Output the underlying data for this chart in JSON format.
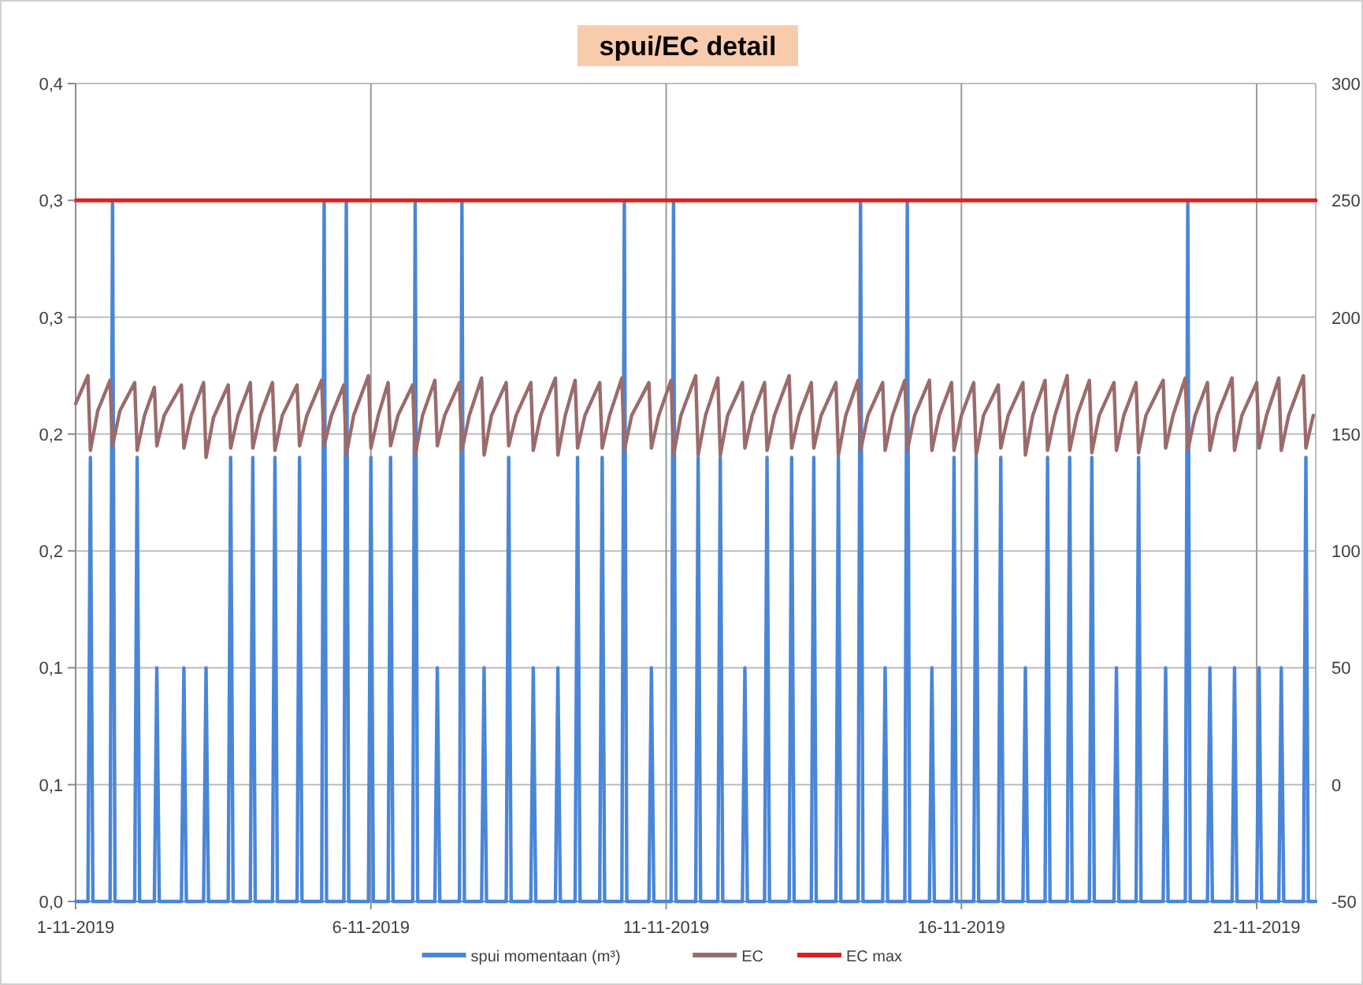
{
  "chart_data": {
    "type": "line",
    "title": "spui/EC detail",
    "xlim": [
      "2019-11-01T00:00",
      "2019-11-22T00:00"
    ],
    "xticks": [
      {
        "value": "2019-11-01",
        "label": "1-11-2019"
      },
      {
        "value": "2019-11-06",
        "label": "6-11-2019"
      },
      {
        "value": "2019-11-11",
        "label": "11-11-2019"
      },
      {
        "value": "2019-11-16",
        "label": "16-11-2019"
      },
      {
        "value": "2019-11-21",
        "label": "21-11-2019"
      }
    ],
    "ylim": [
      0,
      0.35
    ],
    "yticks": [
      {
        "value": 0,
        "label": "0,0"
      },
      {
        "value": 0.05,
        "label": "0,1"
      },
      {
        "value": 0.1,
        "label": "0,1"
      },
      {
        "value": 0.15,
        "label": "0,2"
      },
      {
        "value": 0.2,
        "label": "0,2"
      },
      {
        "value": 0.25,
        "label": "0,3"
      },
      {
        "value": 0.3,
        "label": "0,3"
      },
      {
        "value": 0.35,
        "label": "0,4"
      }
    ],
    "y2lim": [
      -50,
      300
    ],
    "y2ticks": [
      -50,
      0,
      50,
      100,
      150,
      200,
      250,
      300
    ],
    "grid": true,
    "legend": "bottom",
    "series": [
      {
        "name": "spui momentaan (m³)",
        "color": "#4a86d8",
        "x": [
          "2019-11-01T00:00",
          "2019-11-01T05:00",
          "2019-11-01T06:00",
          "2019-11-01T07:00",
          "2019-11-01T14:00",
          "2019-11-01T15:00",
          "2019-11-01T16:00",
          "2019-11-02T00:00",
          "2019-11-02T01:00",
          "2019-11-02T02:00",
          "2019-11-02T08:00",
          "2019-11-02T09:00",
          "2019-11-02T10:00",
          "2019-11-02T19:00",
          "2019-11-02T20:00",
          "2019-11-02T21:00",
          "2019-11-03T04:00",
          "2019-11-03T05:00",
          "2019-11-03T06:00",
          "2019-11-03T14:00",
          "2019-11-03T15:00",
          "2019-11-03T16:00",
          "2019-11-03T23:00",
          "2019-11-04T00:00",
          "2019-11-04T01:00",
          "2019-11-04T08:00",
          "2019-11-04T09:00",
          "2019-11-04T10:00",
          "2019-11-04T18:00",
          "2019-11-04T19:00",
          "2019-11-04T20:00",
          "2019-11-05T04:00",
          "2019-11-05T05:00",
          "2019-11-05T06:00",
          "2019-11-05T13:00",
          "2019-11-05T14:00",
          "2019-11-05T15:00",
          "2019-11-05T23:00",
          "2019-11-06T00:00",
          "2019-11-06T01:00",
          "2019-11-06T07:00",
          "2019-11-06T08:00",
          "2019-11-06T09:00",
          "2019-11-06T17:00",
          "2019-11-06T18:00",
          "2019-11-06T19:00",
          "2019-11-07T02:00",
          "2019-11-07T03:00",
          "2019-11-07T04:00",
          "2019-11-07T12:00",
          "2019-11-07T13:00",
          "2019-11-07T14:00",
          "2019-11-07T21:00",
          "2019-11-07T22:00",
          "2019-11-07T23:00",
          "2019-11-08T07:00",
          "2019-11-08T08:00",
          "2019-11-08T09:00",
          "2019-11-08T17:00",
          "2019-11-08T18:00",
          "2019-11-08T19:00",
          "2019-11-09T03:00",
          "2019-11-09T04:00",
          "2019-11-09T05:00",
          "2019-11-09T11:00",
          "2019-11-09T12:00",
          "2019-11-09T13:00",
          "2019-11-09T21:00",
          "2019-11-09T22:00",
          "2019-11-09T23:00",
          "2019-11-10T06:00",
          "2019-11-10T07:00",
          "2019-11-10T08:00",
          "2019-11-10T17:00",
          "2019-11-10T18:00",
          "2019-11-10T19:00",
          "2019-11-11T02:00",
          "2019-11-11T03:00",
          "2019-11-11T04:00",
          "2019-11-11T12:00",
          "2019-11-11T13:00",
          "2019-11-11T14:00",
          "2019-11-11T21:00",
          "2019-11-11T22:00",
          "2019-11-11T23:00",
          "2019-11-12T07:00",
          "2019-11-12T08:00",
          "2019-11-12T09:00",
          "2019-11-12T16:00",
          "2019-11-12T17:00",
          "2019-11-12T18:00",
          "2019-11-13T02:00",
          "2019-11-13T03:00",
          "2019-11-13T04:00",
          "2019-11-13T11:00",
          "2019-11-13T12:00",
          "2019-11-13T13:00",
          "2019-11-13T21:00",
          "2019-11-13T22:00",
          "2019-11-13T23:00",
          "2019-11-14T06:00",
          "2019-11-14T07:00",
          "2019-11-14T08:00",
          "2019-11-14T16:00",
          "2019-11-14T17:00",
          "2019-11-14T18:00",
          "2019-11-15T01:00",
          "2019-11-15T02:00",
          "2019-11-15T03:00",
          "2019-11-15T11:00",
          "2019-11-15T12:00",
          "2019-11-15T13:00",
          "2019-11-15T20:00",
          "2019-11-15T21:00",
          "2019-11-15T22:00",
          "2019-11-16T05:00",
          "2019-11-16T06:00",
          "2019-11-16T07:00",
          "2019-11-16T15:00",
          "2019-11-16T16:00",
          "2019-11-16T17:00",
          "2019-11-17T01:00",
          "2019-11-17T02:00",
          "2019-11-17T03:00",
          "2019-11-17T10:00",
          "2019-11-17T11:00",
          "2019-11-17T12:00",
          "2019-11-17T19:00",
          "2019-11-17T20:00",
          "2019-11-17T21:00",
          "2019-11-18T04:00",
          "2019-11-18T05:00",
          "2019-11-18T06:00",
          "2019-11-18T14:00",
          "2019-11-18T15:00",
          "2019-11-18T16:00",
          "2019-11-18T23:00",
          "2019-11-19T00:00",
          "2019-11-19T01:00",
          "2019-11-19T10:00",
          "2019-11-19T11:00",
          "2019-11-19T12:00",
          "2019-11-19T19:00",
          "2019-11-19T20:00",
          "2019-11-19T21:00",
          "2019-11-20T04:00",
          "2019-11-20T05:00",
          "2019-11-20T06:00",
          "2019-11-20T14:00",
          "2019-11-20T15:00",
          "2019-11-20T16:00",
          "2019-11-21T00:00",
          "2019-11-21T01:00",
          "2019-11-21T02:00",
          "2019-11-21T09:00",
          "2019-11-21T10:00",
          "2019-11-21T11:00",
          "2019-11-21T19:00",
          "2019-11-21T20:00",
          "2019-11-21T21:00",
          "2019-11-22T00:00"
        ],
        "values": [
          0,
          0,
          0.19,
          0,
          0,
          0.3,
          0,
          0,
          0.19,
          0,
          0,
          0.1,
          0,
          0,
          0.1,
          0,
          0,
          0.1,
          0,
          0,
          0.19,
          0,
          0,
          0.19,
          0,
          0,
          0.19,
          0,
          0,
          0.19,
          0,
          0,
          0.3,
          0,
          0,
          0.3,
          0,
          0,
          0.19,
          0,
          0,
          0.19,
          0,
          0,
          0.3,
          0,
          0,
          0.1,
          0,
          0,
          0.3,
          0,
          0,
          0.1,
          0,
          0,
          0.19,
          0,
          0,
          0.1,
          0,
          0,
          0.1,
          0,
          0,
          0.19,
          0,
          0,
          0.19,
          0,
          0,
          0.3,
          0,
          0,
          0.1,
          0,
          0,
          0.3,
          0,
          0,
          0.19,
          0,
          0,
          0.19,
          0,
          0,
          0.1,
          0,
          0,
          0.19,
          0,
          0,
          0.19,
          0,
          0,
          0.19,
          0,
          0,
          0.19,
          0,
          0,
          0.3,
          0,
          0,
          0.1,
          0,
          0,
          0.3,
          0,
          0,
          0.1,
          0,
          0,
          0.19,
          0,
          0,
          0.19,
          0,
          0,
          0.19,
          0,
          0,
          0.1,
          0,
          0,
          0.19,
          0,
          0,
          0.19,
          0,
          0,
          0.19,
          0,
          0,
          0.1,
          0,
          0,
          0.19,
          0,
          0,
          0.1,
          0,
          0,
          0.3,
          0,
          0,
          0.1,
          0,
          0,
          0.1,
          0,
          0,
          0.1,
          0,
          0,
          0.1,
          0,
          0,
          0.19,
          0,
          0
        ]
      },
      {
        "name": "EC",
        "color": "#9b6b6b",
        "axis": "y2",
        "x": [
          "2019-11-01T00:00",
          "2019-11-01T05:00",
          "2019-11-01T06:00",
          "2019-11-01T09:00",
          "2019-11-01T14:00",
          "2019-11-01T15:00",
          "2019-11-01T18:00",
          "2019-11-02T00:00",
          "2019-11-02T01:00",
          "2019-11-02T04:00",
          "2019-11-02T08:00",
          "2019-11-02T09:00",
          "2019-11-02T12:00",
          "2019-11-02T19:00",
          "2019-11-02T20:00",
          "2019-11-02T23:00",
          "2019-11-03T04:00",
          "2019-11-03T05:00",
          "2019-11-03T08:00",
          "2019-11-03T14:00",
          "2019-11-03T15:00",
          "2019-11-03T18:00",
          "2019-11-03T23:00",
          "2019-11-04T00:00",
          "2019-11-04T03:00",
          "2019-11-04T08:00",
          "2019-11-04T09:00",
          "2019-11-04T12:00",
          "2019-11-04T18:00",
          "2019-11-04T19:00",
          "2019-11-04T22:00",
          "2019-11-05T04:00",
          "2019-11-05T05:00",
          "2019-11-05T08:00",
          "2019-11-05T13:00",
          "2019-11-05T14:00",
          "2019-11-05T17:00",
          "2019-11-05T23:00",
          "2019-11-06T00:00",
          "2019-11-06T03:00",
          "2019-11-06T07:00",
          "2019-11-06T08:00",
          "2019-11-06T11:00",
          "2019-11-06T17:00",
          "2019-11-06T18:00",
          "2019-11-06T21:00",
          "2019-11-07T02:00",
          "2019-11-07T03:00",
          "2019-11-07T06:00",
          "2019-11-07T12:00",
          "2019-11-07T13:00",
          "2019-11-07T16:00",
          "2019-11-07T21:00",
          "2019-11-07T22:00",
          "2019-11-08T01:00",
          "2019-11-08T07:00",
          "2019-11-08T08:00",
          "2019-11-08T11:00",
          "2019-11-08T17:00",
          "2019-11-08T18:00",
          "2019-11-08T21:00",
          "2019-11-09T03:00",
          "2019-11-09T04:00",
          "2019-11-09T07:00",
          "2019-11-09T11:00",
          "2019-11-09T12:00",
          "2019-11-09T15:00",
          "2019-11-09T21:00",
          "2019-11-09T22:00",
          "2019-11-10T01:00",
          "2019-11-10T06:00",
          "2019-11-10T07:00",
          "2019-11-10T10:00",
          "2019-11-10T17:00",
          "2019-11-10T18:00",
          "2019-11-10T21:00",
          "2019-11-11T02:00",
          "2019-11-11T03:00",
          "2019-11-11T06:00",
          "2019-11-11T12:00",
          "2019-11-11T13:00",
          "2019-11-11T16:00",
          "2019-11-11T21:00",
          "2019-11-11T22:00",
          "2019-11-12T01:00",
          "2019-11-12T07:00",
          "2019-11-12T08:00",
          "2019-11-12T11:00",
          "2019-11-12T16:00",
          "2019-11-12T17:00",
          "2019-11-12T20:00",
          "2019-11-13T02:00",
          "2019-11-13T03:00",
          "2019-11-13T06:00",
          "2019-11-13T11:00",
          "2019-11-13T12:00",
          "2019-11-13T15:00",
          "2019-11-13T21:00",
          "2019-11-13T22:00",
          "2019-11-14T01:00",
          "2019-11-14T06:00",
          "2019-11-14T07:00",
          "2019-11-14T10:00",
          "2019-11-14T16:00",
          "2019-11-14T17:00",
          "2019-11-14T20:00",
          "2019-11-15T01:00",
          "2019-11-15T02:00",
          "2019-11-15T05:00",
          "2019-11-15T11:00",
          "2019-11-15T12:00",
          "2019-11-15T15:00",
          "2019-11-15T20:00",
          "2019-11-15T21:00",
          "2019-11-16T00:00",
          "2019-11-16T05:00",
          "2019-11-16T06:00",
          "2019-11-16T09:00",
          "2019-11-16T15:00",
          "2019-11-16T16:00",
          "2019-11-16T19:00",
          "2019-11-17T01:00",
          "2019-11-17T02:00",
          "2019-11-17T05:00",
          "2019-11-17T10:00",
          "2019-11-17T11:00",
          "2019-11-17T14:00",
          "2019-11-17T19:00",
          "2019-11-17T20:00",
          "2019-11-17T23:00",
          "2019-11-18T04:00",
          "2019-11-18T05:00",
          "2019-11-18T08:00",
          "2019-11-18T14:00",
          "2019-11-18T15:00",
          "2019-11-18T18:00",
          "2019-11-18T23:00",
          "2019-11-19T00:00",
          "2019-11-19T03:00",
          "2019-11-19T10:00",
          "2019-11-19T11:00",
          "2019-11-19T14:00",
          "2019-11-19T19:00",
          "2019-11-19T20:00",
          "2019-11-19T23:00",
          "2019-11-20T04:00",
          "2019-11-20T05:00",
          "2019-11-20T08:00",
          "2019-11-20T14:00",
          "2019-11-20T15:00",
          "2019-11-20T18:00",
          "2019-11-21T00:00",
          "2019-11-21T01:00",
          "2019-11-21T04:00",
          "2019-11-21T09:00",
          "2019-11-21T10:00",
          "2019-11-21T13:00",
          "2019-11-21T19:00",
          "2019-11-21T20:00",
          "2019-11-21T23:00"
        ],
        "values": [
          163,
          175,
          143,
          160,
          173,
          145,
          160,
          172,
          143,
          158,
          170,
          145,
          158,
          171,
          144,
          158,
          172,
          140,
          157,
          171,
          144,
          158,
          172,
          144,
          158,
          172,
          143,
          158,
          171,
          145,
          158,
          173,
          145,
          158,
          171,
          141,
          158,
          175,
          144,
          158,
          172,
          145,
          158,
          171,
          141,
          158,
          173,
          145,
          158,
          172,
          143,
          158,
          174,
          141,
          158,
          172,
          145,
          158,
          172,
          143,
          158,
          174,
          141,
          158,
          173,
          144,
          158,
          172,
          144,
          158,
          174,
          143,
          158,
          172,
          144,
          158,
          173,
          141,
          158,
          175,
          141,
          158,
          174,
          141,
          158,
          172,
          144,
          158,
          172,
          143,
          158,
          175,
          144,
          158,
          172,
          144,
          158,
          172,
          141,
          158,
          173,
          143,
          158,
          172,
          143,
          158,
          173,
          143,
          158,
          173,
          143,
          158,
          172,
          143,
          158,
          172,
          141,
          158,
          171,
          144,
          158,
          172,
          141,
          158,
          173,
          143,
          158,
          175,
          143,
          158,
          173,
          142,
          158,
          172,
          143,
          158,
          172,
          142,
          158,
          173,
          144,
          158,
          174,
          143,
          158,
          172,
          143,
          158,
          174,
          143,
          158,
          172,
          144,
          158,
          174,
          143,
          158,
          175,
          144,
          158
        ]
      },
      {
        "name": "EC max",
        "color": "#e02020",
        "axis": "y2",
        "x": [
          "2019-11-01T00:00",
          "2019-11-22T00:00"
        ],
        "values": [
          250,
          250
        ]
      }
    ]
  }
}
